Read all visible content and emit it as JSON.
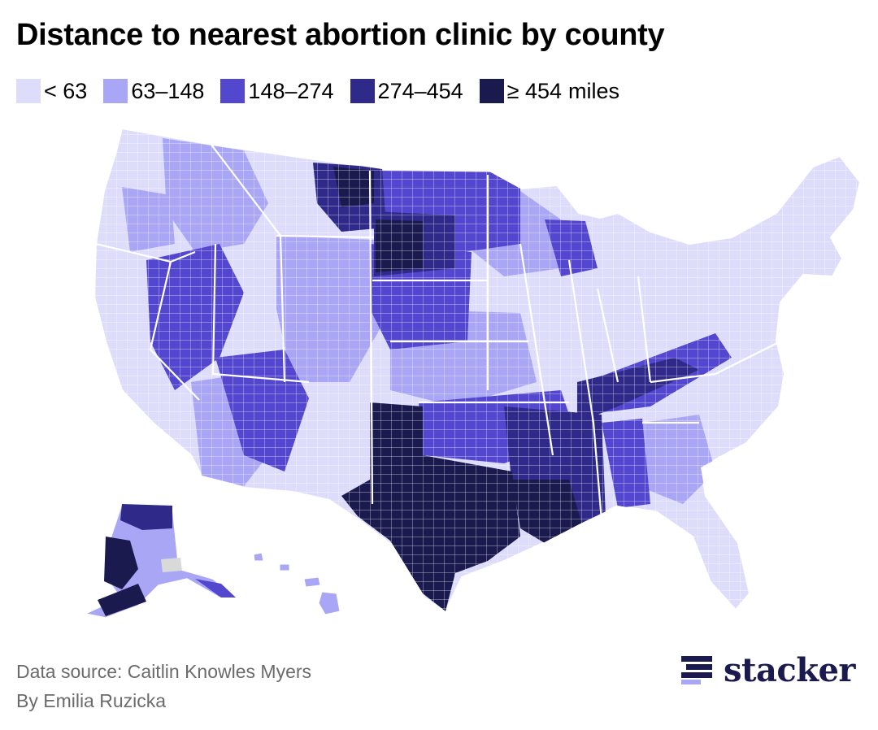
{
  "title": "Distance to nearest abortion clinic by county",
  "legend": {
    "items": [
      {
        "label": "< 63",
        "color": "#dedcfb"
      },
      {
        "label": "63–148",
        "color": "#aaa6f6"
      },
      {
        "label": "148–274",
        "color": "#5346cf"
      },
      {
        "label": "274–454",
        "color": "#2f2a8a"
      },
      {
        "label": "≥ 454",
        "color": "#1b1a4f"
      }
    ],
    "unit": "miles"
  },
  "footer": {
    "source": "Data source: Caitlin Knowles Myers",
    "byline": "By Emilia Ruzicka"
  },
  "brand": {
    "name": "stacker",
    "icon": "stacker-logo-icon",
    "color": "#1b1a4f",
    "icon_light": "#aaa6f6"
  },
  "map": {
    "no_data_color": "#d9d9d9",
    "boundary_color": "#ffffff"
  }
}
